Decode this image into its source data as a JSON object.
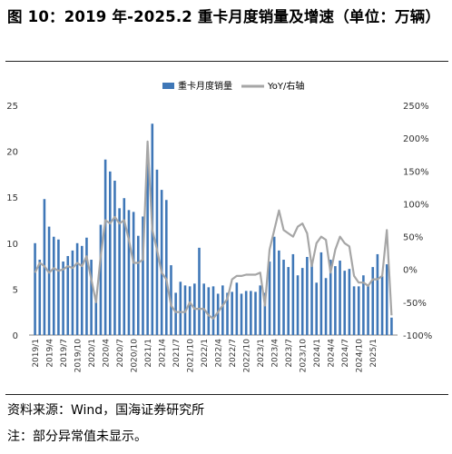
{
  "title": "图 10：2019 年-2025.2 重卡月度销量及增速（单位：万辆）",
  "source": "资料来源：Wind，国海证券研究所",
  "note": "注：部分异常值未显示。",
  "chart_data": {
    "type": "bar+line",
    "legend": [
      "重卡月度销量",
      "YoY/右轴"
    ],
    "legend_position": "top-center",
    "grid": false,
    "colors": {
      "bar": "#3f77b7",
      "line": "#a6a6a6"
    },
    "left_axis": {
      "ylim": [
        0,
        25
      ],
      "ticks": [
        0,
        5,
        10,
        15,
        20,
        25
      ]
    },
    "right_axis": {
      "ylim": [
        -100,
        250
      ],
      "ticks": [
        "-100%",
        "-50%",
        "0%",
        "50%",
        "100%",
        "150%",
        "200%",
        "250%"
      ]
    },
    "x_tick_labels": [
      "2019/1",
      "2019/4",
      "2019/7",
      "2019/10",
      "2020/1",
      "2020/4",
      "2020/7",
      "2020/10",
      "2021/1",
      "2021/4",
      "2021/7",
      "2021/10",
      "2022/1",
      "2022/4",
      "2022/7",
      "2022/10",
      "2023/1",
      "2023/4",
      "2023/7",
      "2023/10",
      "2024/1",
      "2024/4",
      "2024/7",
      "2024/10",
      "2025/1"
    ],
    "series": [
      {
        "name": "重卡月度销量",
        "axis": "left",
        "values": [
          10.0,
          8.2,
          14.8,
          11.8,
          10.7,
          10.4,
          8.0,
          8.6,
          9.2,
          10.0,
          9.7,
          10.6,
          8.2,
          4.1,
          12.0,
          19.1,
          17.8,
          16.8,
          13.8,
          14.9,
          13.6,
          13.4,
          10.8,
          12.9,
          18.9,
          23.0,
          18.0,
          15.8,
          14.7,
          7.6,
          4.6,
          5.8,
          5.4,
          5.3,
          5.6,
          9.5,
          5.6,
          5.2,
          5.3,
          4.5,
          5.4,
          4.6,
          4.7,
          5.7,
          4.5,
          4.8,
          4.8,
          4.7,
          5.4,
          4.6,
          8.0,
          10.7,
          9.2,
          8.2,
          7.4,
          8.8,
          6.5,
          7.3,
          8.5,
          8.0,
          5.7,
          9.0,
          6.2,
          8.2,
          7.5,
          8.1,
          7.0,
          7.2,
          5.3,
          5.3,
          6.5,
          5.5,
          7.4,
          8.8,
          6.4,
          7.7,
          1.9
        ]
      },
      {
        "name": "YoY/右轴",
        "axis": "right",
        "values": [
          -5,
          10,
          5,
          -5,
          2,
          -2,
          0,
          5,
          2,
          10,
          5,
          20,
          -15,
          -50,
          20,
          75,
          70,
          80,
          70,
          75,
          45,
          10,
          10,
          15,
          195,
          60,
          30,
          -5,
          -15,
          -55,
          -65,
          -65,
          -65,
          -50,
          -60,
          -60,
          -60,
          -70,
          -75,
          -65,
          -55,
          -45,
          -15,
          -10,
          -10,
          -8,
          -8,
          -8,
          -5,
          -55,
          30,
          60,
          90,
          60,
          55,
          50,
          65,
          70,
          55,
          5,
          40,
          50,
          45,
          -5,
          30,
          50,
          40,
          35,
          -10,
          -20,
          -20,
          -25,
          -15,
          -15,
          -10,
          60,
          -70
        ]
      }
    ]
  }
}
